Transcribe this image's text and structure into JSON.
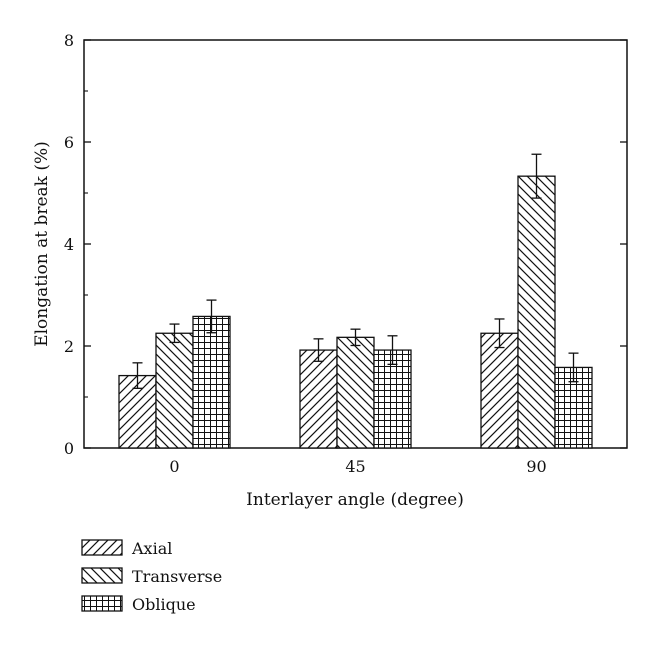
{
  "chart_data": {
    "type": "bar",
    "categories": [
      "0",
      "45",
      "90"
    ],
    "xlabel": "Interlayer angle (degree)",
    "ylabel": "Elongation at break (%)",
    "ylim": [
      0,
      8
    ],
    "yticks": [
      "0",
      "2",
      "4",
      "6",
      "8"
    ],
    "grid": false,
    "legend_position": "bottom-left",
    "series": [
      {
        "name": "Axial",
        "pattern": "diagonal-up",
        "values": [
          1.42,
          1.92,
          2.25
        ],
        "errors": [
          0.25,
          0.22,
          0.28
        ]
      },
      {
        "name": "Transverse",
        "pattern": "diagonal-down",
        "values": [
          2.25,
          2.17,
          5.33
        ],
        "errors": [
          0.18,
          0.16,
          0.43
        ]
      },
      {
        "name": "Oblique",
        "pattern": "grid",
        "values": [
          2.58,
          1.92,
          1.58
        ],
        "errors": [
          0.32,
          0.28,
          0.28
        ]
      }
    ],
    "colors": {
      "bar_stroke": "#111111",
      "fill": "#ffffff"
    }
  }
}
